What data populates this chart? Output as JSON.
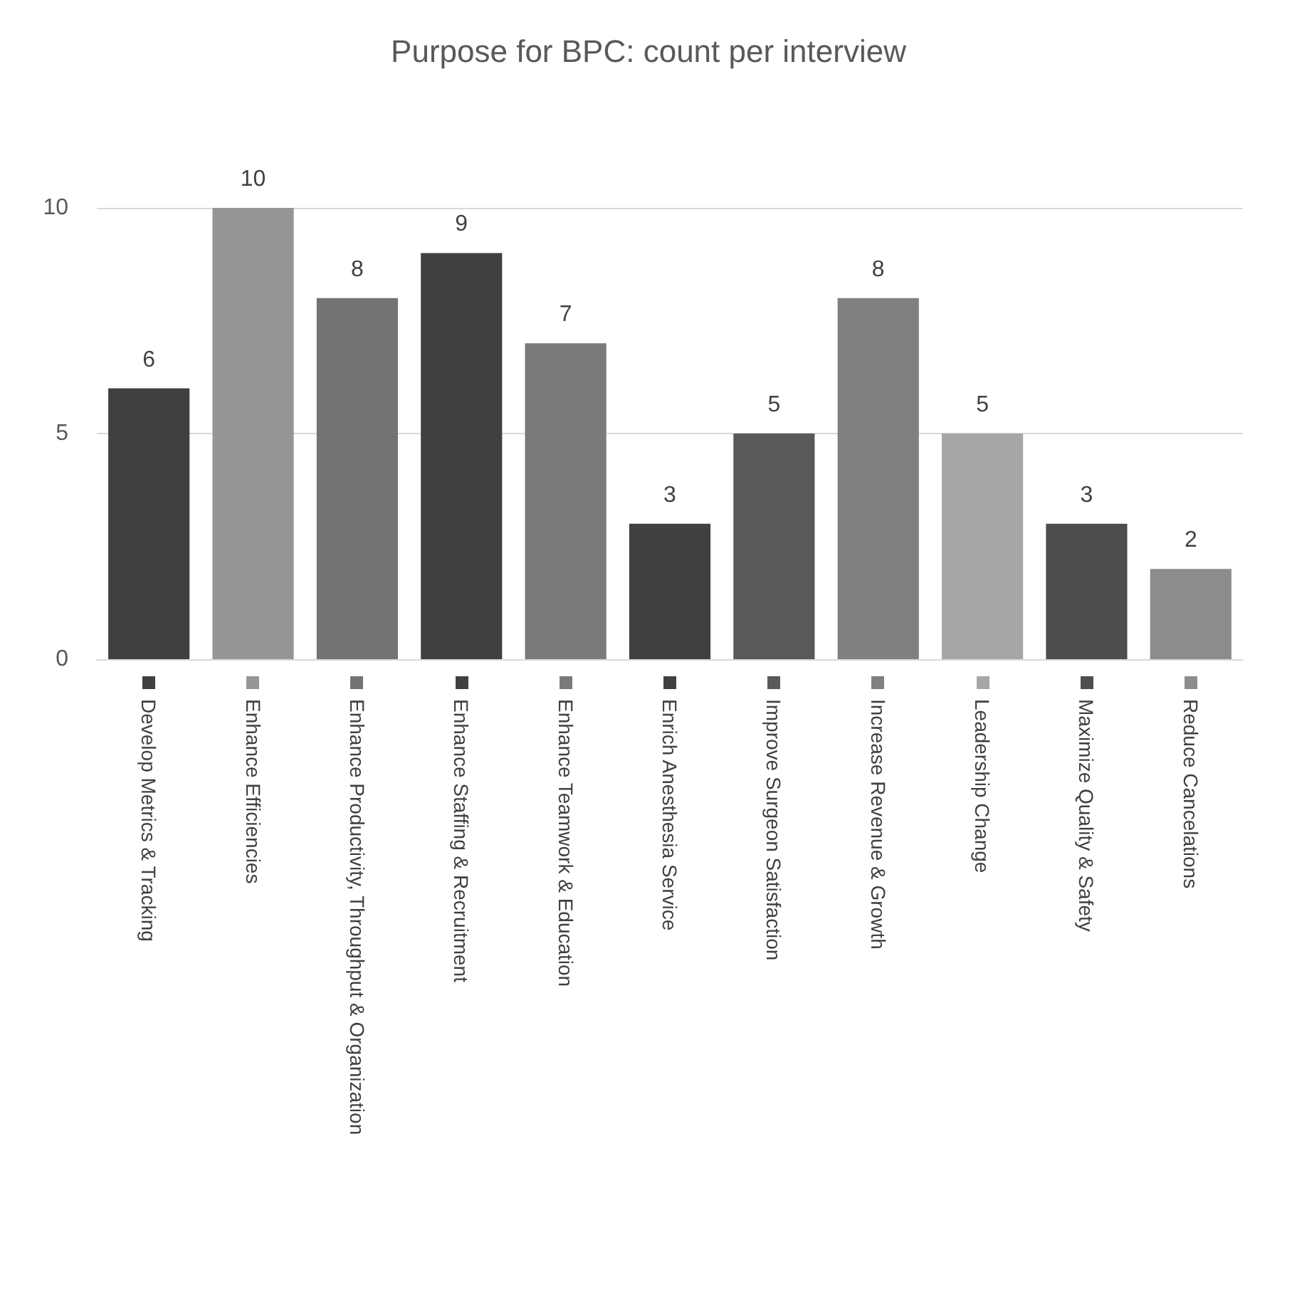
{
  "chart_data": {
    "type": "bar",
    "title": "Purpose for BPC: count per interview",
    "categories": [
      "Develop Metrics & Tracking",
      "Enhance Efficiencies",
      "Enhance Productivity, Throughput & Organization",
      "Enhance Staffing & Recruitment",
      "Enhance Teamwork & Education",
      "Enrich Anesthesia Service",
      "Improve Surgeon Satisfaction",
      "Increase Revenue & Growth",
      "Leadership Change",
      "Maximize Quality & Safety",
      "Reduce Cancelations"
    ],
    "values": [
      6,
      10,
      8,
      9,
      7,
      3,
      5,
      8,
      5,
      3,
      2
    ],
    "colors": [
      "#404040",
      "#969696",
      "#737373",
      "#404040",
      "#7a7a7a",
      "#404040",
      "#595959",
      "#808080",
      "#a6a6a6",
      "#4d4d4d",
      "#8c8c8c"
    ],
    "ylim": [
      0,
      10
    ],
    "yticks": [
      0,
      5,
      10
    ],
    "grid": "y",
    "data_labels": true
  }
}
